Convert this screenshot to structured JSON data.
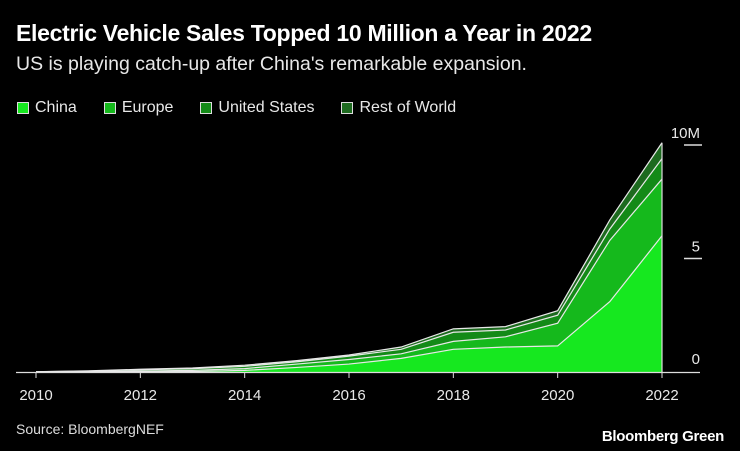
{
  "title": "Electric Vehicle Sales Topped 10 Million a Year in 2022",
  "subtitle": "US is playing catch-up after China's remarkable expansion.",
  "source": "Source: BloombergNEF",
  "brand": "Bloomberg Green",
  "chart_data": {
    "type": "area",
    "stacked": true,
    "title": "Electric Vehicle Sales Topped 10 Million a Year in 2022",
    "xlabel": "",
    "ylabel": "",
    "x": [
      2010,
      2011,
      2012,
      2013,
      2014,
      2015,
      2016,
      2017,
      2018,
      2019,
      2020,
      2021,
      2022
    ],
    "x_tick_labels": [
      "2010",
      "2012",
      "2014",
      "2016",
      "2018",
      "2020",
      "2022"
    ],
    "y_tick_labels": [
      "0",
      "5",
      "10M"
    ],
    "y_ticks": [
      0,
      5,
      10
    ],
    "ylim": [
      0,
      10.2
    ],
    "legend_position": "top-left",
    "series": [
      {
        "name": "China",
        "color": "#16e81f",
        "values": [
          0,
          0.005,
          0.01,
          0.02,
          0.07,
          0.2,
          0.35,
          0.6,
          1.0,
          1.1,
          1.15,
          3.1,
          6.0
        ]
      },
      {
        "name": "Europe",
        "color": "#15b91c",
        "values": [
          0.005,
          0.015,
          0.03,
          0.05,
          0.08,
          0.15,
          0.2,
          0.2,
          0.35,
          0.45,
          1.0,
          2.7,
          2.5
        ]
      },
      {
        "name": "United States",
        "color": "#138a17",
        "values": [
          0.005,
          0.02,
          0.06,
          0.08,
          0.1,
          0.1,
          0.15,
          0.2,
          0.4,
          0.3,
          0.35,
          0.5,
          0.9
        ]
      },
      {
        "name": "Rest of World",
        "color": "#1d6a1f",
        "values": [
          0,
          0.01,
          0.02,
          0.03,
          0.05,
          0.05,
          0.05,
          0.1,
          0.15,
          0.15,
          0.2,
          0.4,
          0.7
        ]
      }
    ]
  }
}
